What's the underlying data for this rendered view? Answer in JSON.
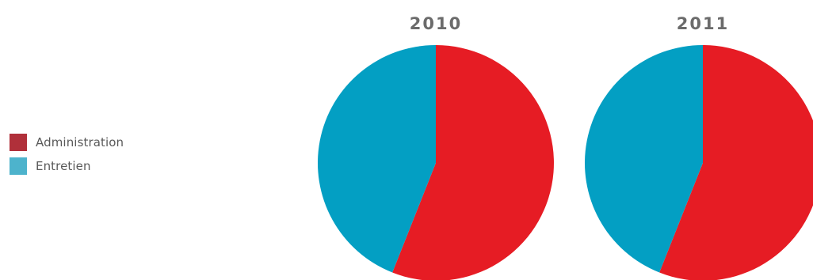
{
  "chart_data": {
    "type": "pie",
    "legend_position": "left",
    "legend": [
      {
        "label": "Administration",
        "color": "#b0303a"
      },
      {
        "label": "Entretien",
        "color": "#4db3cc"
      }
    ],
    "pies": [
      {
        "title": "2010",
        "slices": [
          {
            "name": "Administration",
            "value": 56,
            "color": "#e61c24"
          },
          {
            "name": "Entretien",
            "value": 44,
            "color": "#039fc3"
          }
        ]
      },
      {
        "title": "2011",
        "slices": [
          {
            "name": "Administration",
            "value": 56,
            "color": "#e61c24"
          },
          {
            "name": "Entretien",
            "value": 44,
            "color": "#039fc3"
          }
        ]
      }
    ]
  }
}
